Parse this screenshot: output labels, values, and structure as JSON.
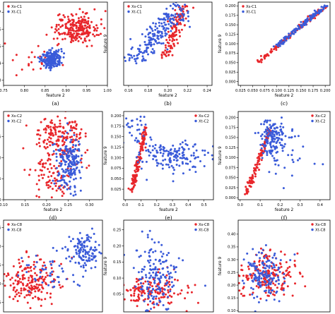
{
  "figure": {
    "background": "#ffffff"
  },
  "colors": {
    "xs": "#e8262b",
    "xt": "#3a5bd9",
    "frame": "#000000"
  },
  "chart_data": [
    {
      "id": "a",
      "type": "scatter",
      "caption": "(a)",
      "xlabel": "feature 2",
      "ylabel": "",
      "xlim": [
        0.75,
        1.0
      ],
      "ylim": [
        1.27,
        1.76
      ],
      "xticks": [
        "0.75",
        "0.80",
        "0.85",
        "0.90",
        "0.95",
        "1.00"
      ],
      "xtick_values": [
        0.75,
        0.8,
        0.85,
        0.9,
        0.95,
        1.0
      ],
      "yticks": [
        "1.3",
        "1.4",
        "1.5",
        "1.6",
        "1.7"
      ],
      "ytick_values": [
        1.3,
        1.4,
        1.5,
        1.6,
        1.7
      ],
      "legend": {
        "position": "upper-left",
        "entries": [
          "Xs-C1",
          "Xt-C1"
        ]
      },
      "series": [
        {
          "name": "Xs-C1",
          "color": "#e8262b",
          "clusters": [
            {
              "mx": 0.925,
              "my": 1.605,
              "sx": 0.026,
              "sy": 0.042,
              "n": 230
            },
            {
              "mx": 0.82,
              "my": 1.42,
              "sx": 0.035,
              "sy": 0.05,
              "n": 22
            }
          ]
        },
        {
          "name": "Xt-C1",
          "color": "#3a5bd9",
          "clusters": [
            {
              "mx": 0.865,
              "my": 1.425,
              "sx": 0.012,
              "sy": 0.025,
              "n": 210
            }
          ]
        }
      ]
    },
    {
      "id": "b",
      "type": "scatter",
      "caption": "(b)",
      "xlabel": "feature 2",
      "ylabel": "feature 9",
      "xlim": [
        0.155,
        0.245
      ],
      "ylim": [
        0.155,
        0.285
      ],
      "xticks": [
        "0.16",
        "0.18",
        "0.20",
        "0.22",
        "0.24"
      ],
      "xtick_values": [
        0.16,
        0.18,
        0.2,
        0.22,
        0.24
      ],
      "yticks": [],
      "ytick_values": [],
      "legend": {
        "position": "upper-left",
        "entries": [
          "Xs-C1",
          "Xt-C1"
        ]
      },
      "series": [
        {
          "name": "Xs-C1",
          "color": "#e8262b",
          "lines": [
            {
              "x0": 0.198,
              "x1": 0.216,
              "y0": 0.2,
              "y1": 0.28,
              "noise": 0.003,
              "n": 130
            }
          ]
        },
        {
          "name": "Xt-C1",
          "color": "#3a5bd9",
          "lines": [
            {
              "x0": 0.165,
              "x1": 0.215,
              "y0": 0.19,
              "y1": 0.28,
              "noise": 0.008,
              "n": 200
            }
          ]
        }
      ]
    },
    {
      "id": "c",
      "type": "scatter",
      "caption": "(c)",
      "xlabel": "feature 2",
      "ylabel": "feature 9",
      "xlim": [
        0.02,
        0.21
      ],
      "ylim": [
        -0.01,
        0.21
      ],
      "xticks": [
        "0.025",
        "0.050",
        "0.075",
        "0.100",
        "0.125",
        "0.150",
        "0.175",
        "0.200"
      ],
      "xtick_values": [
        0.025,
        0.05,
        0.075,
        0.1,
        0.125,
        0.15,
        0.175,
        0.2
      ],
      "yticks": [
        "0.000",
        "0.025",
        "0.050",
        "0.075",
        "0.100",
        "0.125",
        "0.150",
        "0.175",
        "0.200"
      ],
      "ytick_values": [
        0.0,
        0.025,
        0.05,
        0.075,
        0.1,
        0.125,
        0.15,
        0.175,
        0.2
      ],
      "legend": {
        "position": "upper-left",
        "entries": [
          "Xs-C1",
          "Xt-C1"
        ]
      },
      "series": [
        {
          "name": "Xs-C1",
          "color": "#e8262b",
          "lines": [
            {
              "x0": 0.06,
              "x1": 0.2,
              "y0": 0.05,
              "y1": 0.2,
              "noise": 0.003,
              "n": 130
            }
          ]
        },
        {
          "name": "Xt-C1",
          "color": "#3a5bd9",
          "lines": [
            {
              "x0": 0.1,
              "x1": 0.2,
              "y0": 0.095,
              "y1": 0.2,
              "noise": 0.003,
              "n": 140
            }
          ]
        }
      ]
    },
    {
      "id": "d",
      "type": "scatter",
      "caption": "(d)",
      "xlabel": "feature 2",
      "ylabel": "",
      "xlim": [
        0.1,
        0.33
      ],
      "ylim": [
        0.0,
        0.21
      ],
      "xticks": [
        "0.10",
        "0.15",
        "0.20",
        "0.25",
        "0.30"
      ],
      "xtick_values": [
        0.1,
        0.15,
        0.2,
        0.25,
        0.3
      ],
      "yticks": [
        "00",
        "05",
        "10",
        "15"
      ],
      "ytick_values": [
        0.0,
        0.05,
        0.1,
        0.15
      ],
      "legend": {
        "position": "upper-left",
        "entries": [
          "Xs-C2",
          "Xt-C2"
        ]
      },
      "series": [
        {
          "name": "Xs-C2",
          "color": "#e8262b",
          "clusters": [
            {
              "mx": 0.235,
              "my": 0.16,
              "sx": 0.028,
              "sy": 0.02,
              "n": 140
            },
            {
              "mx": 0.22,
              "my": 0.07,
              "sx": 0.03,
              "sy": 0.04,
              "n": 120
            }
          ]
        },
        {
          "name": "Xt-C2",
          "color": "#3a5bd9",
          "clusters": [
            {
              "mx": 0.252,
              "my": 0.09,
              "sx": 0.015,
              "sy": 0.035,
              "n": 190
            }
          ]
        }
      ]
    },
    {
      "id": "e",
      "type": "scatter",
      "caption": "(e)",
      "xlabel": "feature 2",
      "ylabel": "feature 9",
      "xlim": [
        -0.01,
        0.56
      ],
      "ylim": [
        0.0,
        0.21
      ],
      "xticks": [
        "0.0",
        "0.1",
        "0.2",
        "0.3",
        "0.4",
        "0.5"
      ],
      "xtick_values": [
        0.0,
        0.1,
        0.2,
        0.3,
        0.4,
        0.5
      ],
      "yticks": [
        "0.025",
        "0.050",
        "0.075",
        "0.100",
        "0.125",
        "0.150",
        "0.175",
        "0.200"
      ],
      "ytick_values": [
        0.025,
        0.05,
        0.075,
        0.1,
        0.125,
        0.15,
        0.175,
        0.2
      ],
      "legend": {
        "position": "upper-right",
        "entries": [
          "Xs-C2",
          "Xt-C2"
        ]
      },
      "series": [
        {
          "name": "Xs-C2",
          "color": "#e8262b",
          "lines": [
            {
              "x0": 0.04,
              "x1": 0.13,
              "y0": 0.02,
              "y1": 0.17,
              "noise": 0.008,
              "n": 150
            }
          ]
        },
        {
          "name": "Xt-C2",
          "color": "#3a5bd9",
          "clusters": [
            {
              "mx": 0.3,
              "my": 0.105,
              "sx": 0.12,
              "sy": 0.018,
              "n": 160
            },
            {
              "mx": 0.06,
              "my": 0.17,
              "sx": 0.04,
              "sy": 0.02,
              "n": 30
            }
          ]
        }
      ]
    },
    {
      "id": "f",
      "type": "scatter",
      "caption": "(f)",
      "xlabel": "feature 2",
      "ylabel": "feature 9",
      "xlim": [
        -0.01,
        0.45
      ],
      "ylim": [
        -0.005,
        0.215
      ],
      "xticks": [
        "0.0",
        "0.1",
        "0.2",
        "0.3",
        "0.4"
      ],
      "xtick_values": [
        0.0,
        0.1,
        0.2,
        0.3,
        0.4
      ],
      "yticks": [
        "0.000",
        "0.025",
        "0.050",
        "0.075",
        "0.100",
        "0.125",
        "0.150",
        "0.175",
        "0.200"
      ],
      "ytick_values": [
        0.0,
        0.025,
        0.05,
        0.075,
        0.1,
        0.125,
        0.15,
        0.175,
        0.2
      ],
      "legend": {
        "position": "upper-right",
        "entries": [
          "Xs-C2",
          "Xt-C2"
        ]
      },
      "series": [
        {
          "name": "Xs-C2",
          "color": "#e8262b",
          "lines": [
            {
              "x0": 0.03,
              "x1": 0.15,
              "y0": 0.01,
              "y1": 0.17,
              "noise": 0.006,
              "n": 110
            }
          ]
        },
        {
          "name": "Xt-C2",
          "color": "#3a5bd9",
          "clusters": [
            {
              "mx": 0.16,
              "my": 0.145,
              "sx": 0.03,
              "sy": 0.025,
              "n": 150
            },
            {
              "mx": 0.25,
              "my": 0.12,
              "sx": 0.08,
              "sy": 0.04,
              "n": 25
            }
          ]
        }
      ]
    },
    {
      "id": "g",
      "type": "scatter",
      "caption": "",
      "xlabel": "",
      "ylabel": "",
      "xlim": [
        0.1,
        0.34
      ],
      "ylim": [
        0.125,
        0.37
      ],
      "xticks": [],
      "xtick_values": [],
      "yticks": [
        "15",
        "20",
        "25",
        "30",
        "35"
      ],
      "ytick_values": [
        0.15,
        0.2,
        0.25,
        0.3,
        0.35
      ],
      "legend": {
        "position": "upper-left",
        "entries": [
          "Xs-C8",
          "Xt-C8"
        ]
      },
      "series": [
        {
          "name": "Xs-C8",
          "color": "#e8262b",
          "clusters": [
            {
              "mx": 0.17,
              "my": 0.205,
              "sx": 0.035,
              "sy": 0.03,
              "n": 190
            }
          ]
        },
        {
          "name": "Xt-C8",
          "color": "#3a5bd9",
          "clusters": [
            {
              "mx": 0.295,
              "my": 0.29,
              "sx": 0.018,
              "sy": 0.025,
              "n": 120
            },
            {
              "mx": 0.21,
              "my": 0.23,
              "sx": 0.035,
              "sy": 0.025,
              "n": 50
            }
          ]
        }
      ]
    },
    {
      "id": "h",
      "type": "scatter",
      "caption": "",
      "xlabel": "",
      "ylabel": "feature 9",
      "xlim": [
        -0.01,
        0.56
      ],
      "ylim": [
        -0.005,
        0.28
      ],
      "xticks": [],
      "xtick_values": [],
      "yticks": [
        "0.05",
        "0.10",
        "0.15",
        "0.20",
        "0.25"
      ],
      "ytick_values": [
        0.05,
        0.1,
        0.15,
        0.2,
        0.25
      ],
      "legend": {
        "position": "upper-right",
        "entries": [
          "Xs-C8",
          "Xt-C8"
        ]
      },
      "series": [
        {
          "name": "Xs-C8",
          "color": "#e8262b",
          "clusters": [
            {
              "mx": 0.17,
              "my": 0.06,
              "sx": 0.11,
              "sy": 0.025,
              "n": 150
            }
          ]
        },
        {
          "name": "Xt-C8",
          "color": "#3a5bd9",
          "clusters": [
            {
              "mx": 0.19,
              "my": 0.1,
              "sx": 0.07,
              "sy": 0.055,
              "n": 170
            }
          ]
        }
      ]
    },
    {
      "id": "i",
      "type": "scatter",
      "caption": "",
      "xlabel": "",
      "ylabel": "feature 9",
      "xlim": [
        -0.01,
        0.58
      ],
      "ylim": [
        0.095,
        0.455
      ],
      "xticks": [],
      "xtick_values": [],
      "yticks": [
        "0.10",
        "0.15",
        "0.20",
        "0.25",
        "0.30",
        "0.35",
        "0.40"
      ],
      "ytick_values": [
        0.1,
        0.15,
        0.2,
        0.25,
        0.3,
        0.35,
        0.4
      ],
      "legend": {
        "position": "upper-right",
        "entries": [
          "Xs-C8",
          "Xt-C8"
        ]
      },
      "series": [
        {
          "name": "Xs-C8",
          "color": "#e8262b",
          "clusters": [
            {
              "mx": 0.17,
              "my": 0.235,
              "sx": 0.1,
              "sy": 0.045,
              "n": 190
            }
          ]
        },
        {
          "name": "Xt-C8",
          "color": "#3a5bd9",
          "clusters": [
            {
              "mx": 0.16,
              "my": 0.245,
              "sx": 0.06,
              "sy": 0.05,
              "n": 150
            }
          ]
        }
      ]
    }
  ]
}
